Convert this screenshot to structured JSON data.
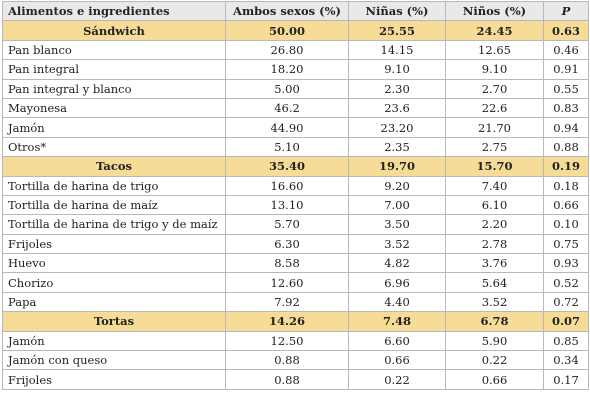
{
  "table": {
    "headers": [
      "Alimentos e ingredientes",
      "Ambos sexos (%)",
      "Niñas (%)",
      "Niños (%)",
      "P"
    ],
    "sandwich": {
      "group": [
        "Sándwich",
        "50.00",
        "25.55",
        "24.45",
        "0.63"
      ],
      "rows": [
        [
          "Pan blanco",
          "26.80",
          "14.15",
          "12.65",
          "0.46"
        ],
        [
          "Pan integral",
          "18.20",
          "9.10",
          "9.10",
          "0.91"
        ],
        [
          "Pan integral y blanco",
          "5.00",
          "2.30",
          "2.70",
          "0.55"
        ],
        [
          "Mayonesa",
          "46.2",
          "23.6",
          "22.6",
          "0.83"
        ],
        [
          "Jamón",
          "44.90",
          "23.20",
          "21.70",
          "0.94"
        ],
        [
          "Otros*",
          "5.10",
          "2.35",
          "2.75",
          "0.88"
        ]
      ]
    },
    "tacos": {
      "group": [
        "Tacos",
        "35.40",
        "19.70",
        "15.70",
        "0.19"
      ],
      "rows": [
        [
          "Tortilla de harina de trigo",
          "16.60",
          "9.20",
          "7.40",
          "0.18"
        ],
        [
          "Tortilla de harina de maíz",
          "13.10",
          "7.00",
          "6.10",
          "0.66"
        ],
        [
          "Tortilla de harina de trigo y de maíz",
          "5.70",
          "3.50",
          "2.20",
          "0.10"
        ],
        [
          "Frijoles",
          "6.30",
          "3.52",
          "2.78",
          "0.75"
        ],
        [
          "Huevo",
          "8.58",
          "4.82",
          "3.76",
          "0.93"
        ],
        [
          "Chorizo",
          "12.60",
          "6.96",
          "5.64",
          "0.52"
        ],
        [
          "Papa",
          "7.92",
          "4.40",
          "3.52",
          "0.72"
        ]
      ]
    },
    "tortas": {
      "group": [
        "Tortas",
        "14.26",
        "7.48",
        "6.78",
        "0.07"
      ],
      "rows": [
        [
          "Jamón",
          "12.50",
          "6.60",
          "5.90",
          "0.85"
        ],
        [
          "Jamón con queso",
          "0.88",
          "0.66",
          "0.22",
          "0.34"
        ],
        [
          "Frijoles",
          "0.88",
          "0.22",
          "0.66",
          "0.17"
        ]
      ]
    }
  }
}
